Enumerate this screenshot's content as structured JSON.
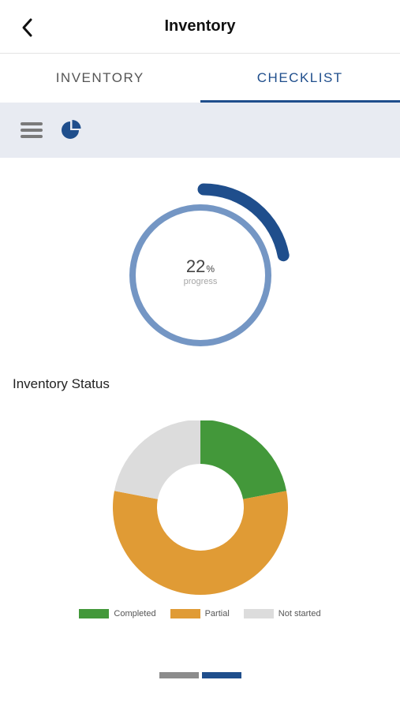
{
  "header": {
    "title": "Inventory",
    "back_icon": "chevron-left-icon"
  },
  "tabs": [
    {
      "label": "INVENTORY",
      "active": false
    },
    {
      "label": "CHECKLIST",
      "active": true
    }
  ],
  "toolbar": {
    "list_icon": "list-icon",
    "pie_icon": "pie-chart-icon"
  },
  "progress": {
    "value": 22,
    "unit": "%",
    "label": "progress",
    "ring_color": "#7496c4",
    "arc_color": "#1f4e8c"
  },
  "status_section": {
    "title": "Inventory Status"
  },
  "chart_data": {
    "type": "pie",
    "variant": "donut",
    "title": "",
    "categories": [
      "Completed",
      "Partial",
      "Not started"
    ],
    "values": [
      22,
      56,
      22
    ],
    "colors": [
      "#43983a",
      "#e09b35",
      "#dcdcdc"
    ],
    "legend_position": "bottom"
  },
  "pager": {
    "pages": 2,
    "active": 1,
    "inactive_color": "#8c8c8c",
    "active_color": "#1f4e8c"
  },
  "colors": {
    "accent": "#1f4e8c",
    "toolbar_bg": "#e8ebf2"
  }
}
